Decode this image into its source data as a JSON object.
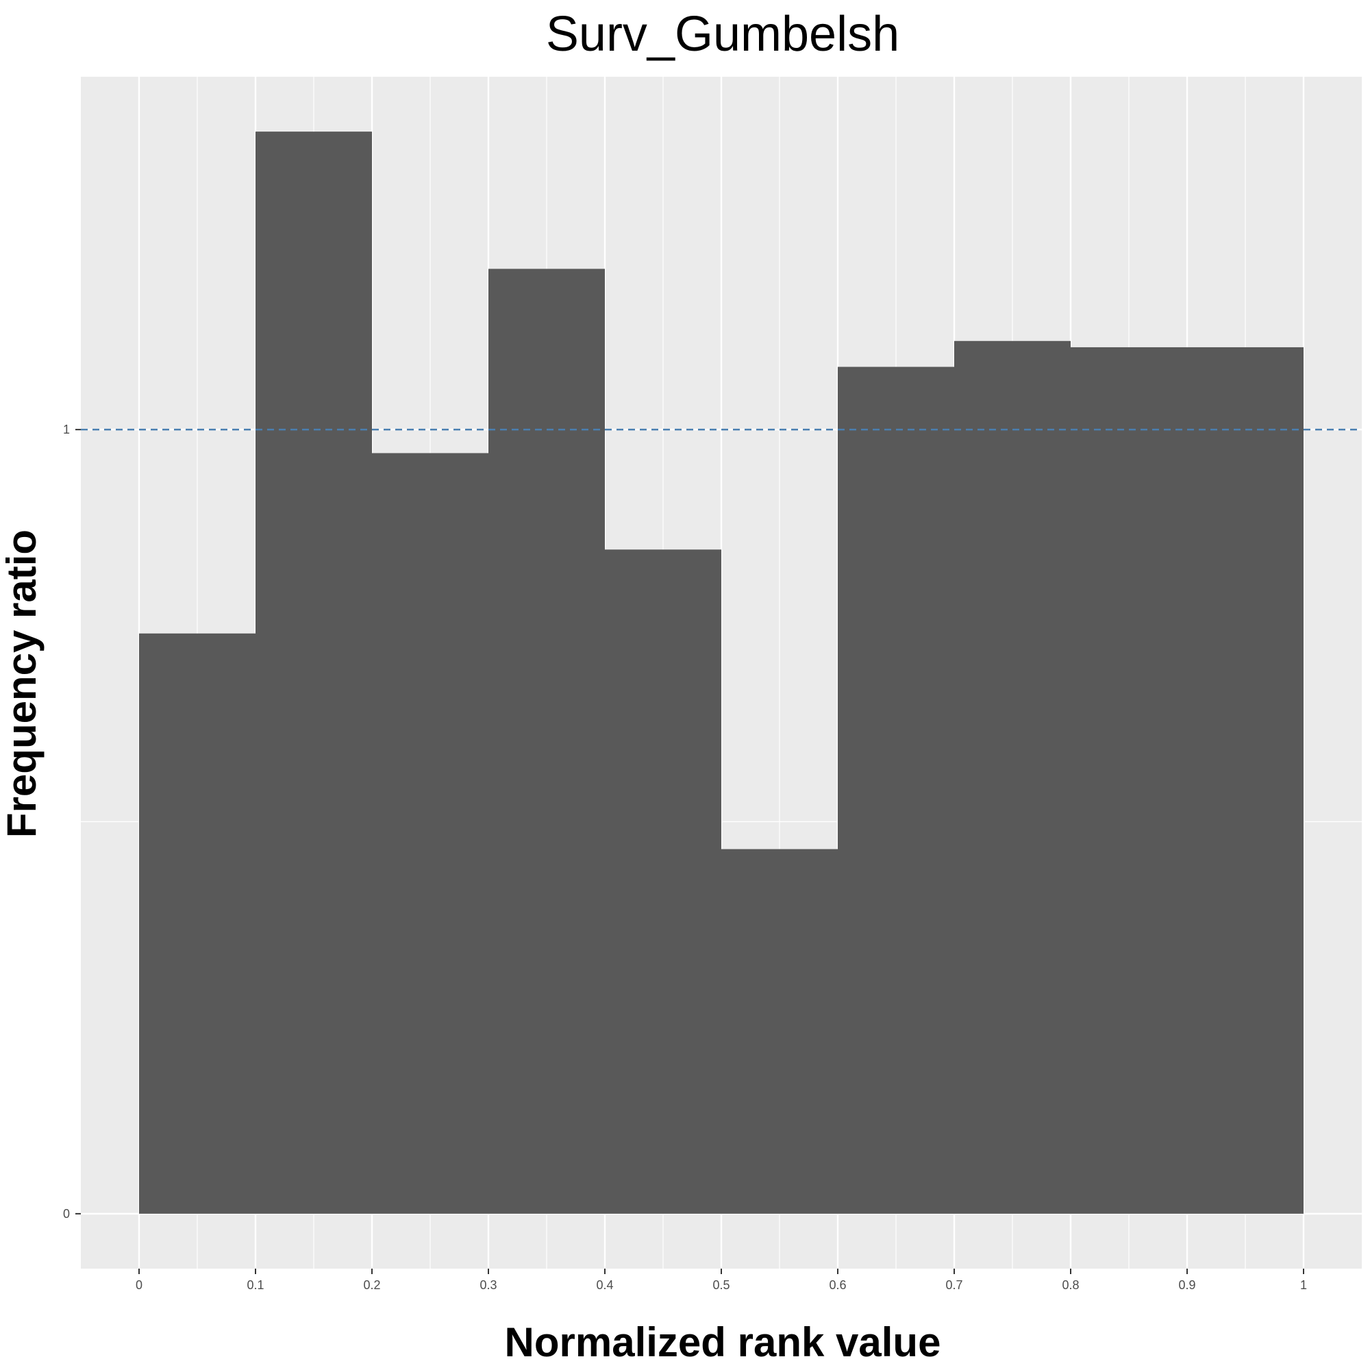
{
  "chart_data": {
    "type": "bar",
    "title": "Surv_Gumbelsh",
    "xlabel": "Normalized rank value",
    "ylabel": "Frequency ratio",
    "bins": [
      {
        "x0": 0.0,
        "x1": 0.1,
        "value": 0.74
      },
      {
        "x0": 0.1,
        "x1": 0.2,
        "value": 1.38
      },
      {
        "x0": 0.2,
        "x1": 0.3,
        "value": 0.97
      },
      {
        "x0": 0.3,
        "x1": 0.4,
        "value": 1.205
      },
      {
        "x0": 0.4,
        "x1": 0.5,
        "value": 0.847
      },
      {
        "x0": 0.5,
        "x1": 0.6,
        "value": 0.465
      },
      {
        "x0": 0.6,
        "x1": 0.7,
        "value": 1.08
      },
      {
        "x0": 0.7,
        "x1": 0.8,
        "value": 1.113
      },
      {
        "x0": 0.8,
        "x1": 0.9,
        "value": 1.105
      },
      {
        "x0": 0.9,
        "x1": 1.0,
        "value": 1.105
      }
    ],
    "xlim": [
      -0.05,
      1.05
    ],
    "ylim": [
      -0.07,
      1.45
    ],
    "x_ticks": [
      {
        "value": 0,
        "label": "0"
      },
      {
        "value": 0.1,
        "label": "0.1"
      },
      {
        "value": 0.2,
        "label": "0.2"
      },
      {
        "value": 0.3,
        "label": "0.3"
      },
      {
        "value": 0.4,
        "label": "0.4"
      },
      {
        "value": 0.5,
        "label": "0.5"
      },
      {
        "value": 0.6,
        "label": "0.6"
      },
      {
        "value": 0.7,
        "label": "0.7"
      },
      {
        "value": 0.8,
        "label": "0.8"
      },
      {
        "value": 0.9,
        "label": "0.9"
      },
      {
        "value": 1.0,
        "label": "1"
      }
    ],
    "y_ticks": [
      {
        "value": 0,
        "label": "0"
      },
      {
        "value": 1,
        "label": "1"
      }
    ],
    "reference_line": {
      "y": 1,
      "style": "dashed",
      "color": "#4a7fb0"
    },
    "bar_color": "#595959",
    "panel_background": "#ebebeb",
    "grid": true,
    "legend": "none"
  }
}
